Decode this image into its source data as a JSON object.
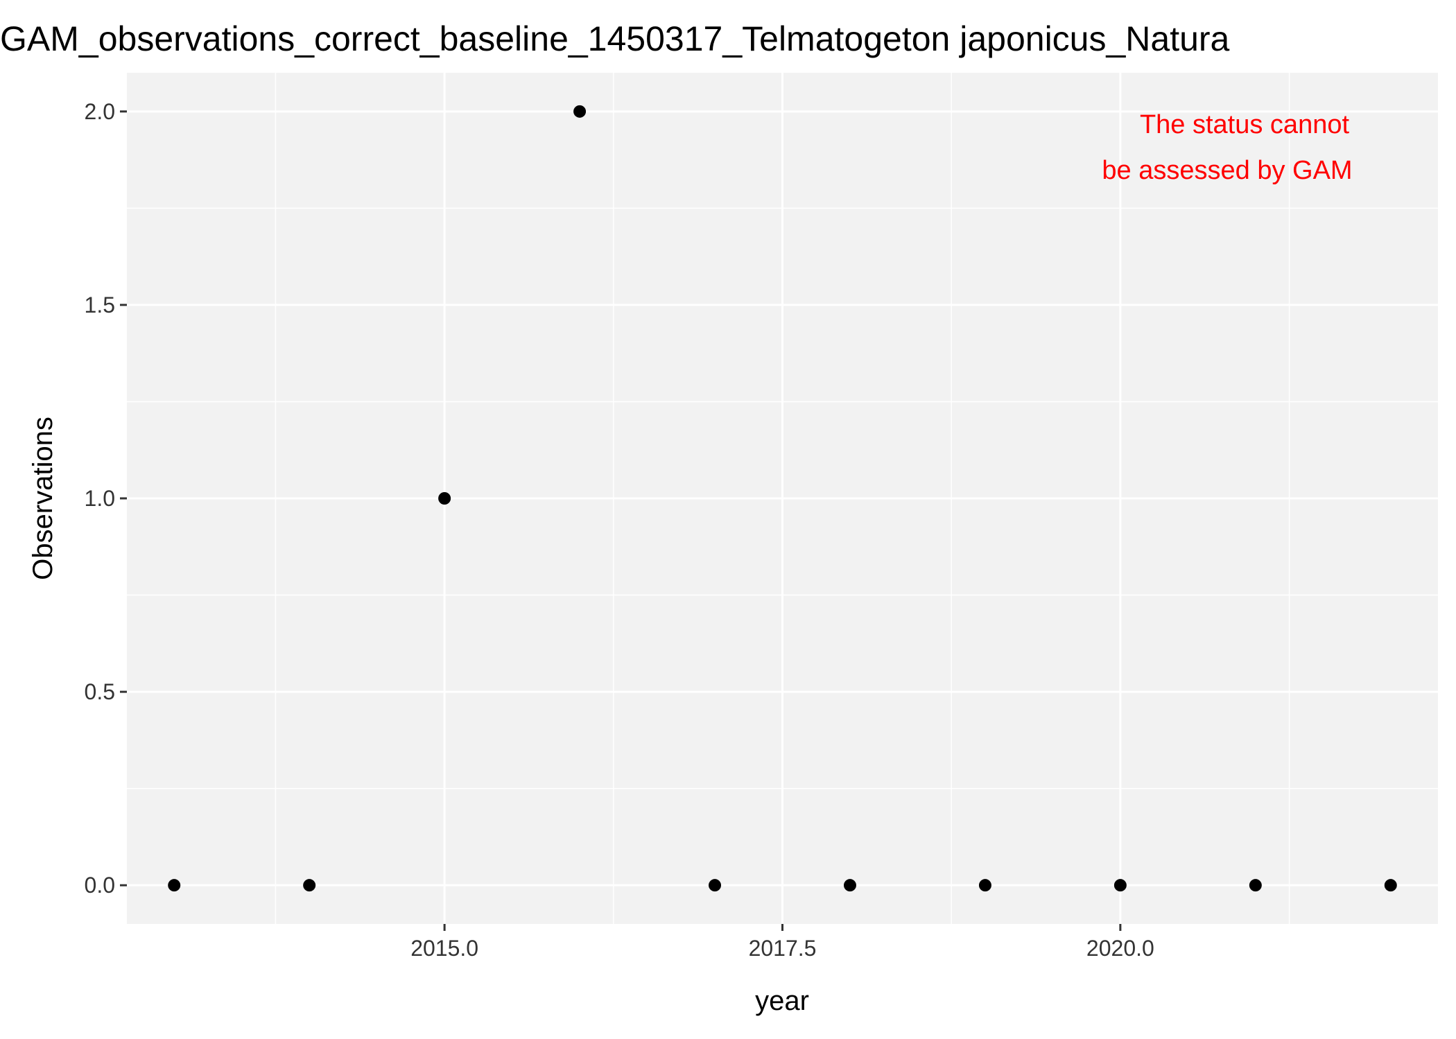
{
  "chart_data": {
    "type": "scatter",
    "title": "GAM_observations_correct_baseline_1450317_Telmatogeton japonicus_Natura",
    "xlabel": "year",
    "ylabel": "Observations",
    "xlim": [
      2012.65,
      2022.35
    ],
    "ylim": [
      -0.1,
      2.1
    ],
    "x_ticks": [
      2015.0,
      2017.5,
      2020.0
    ],
    "x_tick_labels": [
      "2015.0",
      "2017.5",
      "2020.0"
    ],
    "x_minor": [
      2013.75,
      2016.25,
      2018.75,
      2021.25
    ],
    "y_ticks": [
      0.0,
      0.5,
      1.0,
      1.5,
      2.0
    ],
    "y_tick_labels": [
      "0.0",
      "0.5",
      "1.0",
      "1.5",
      "2.0"
    ],
    "y_minor": [
      0.25,
      0.75,
      1.25,
      1.75
    ],
    "grid": true,
    "series": [
      {
        "name": "observations",
        "x": [
          2013,
          2014,
          2015,
          2016,
          2017,
          2018,
          2019,
          2020,
          2021,
          2022
        ],
        "y": [
          0,
          0,
          1,
          2,
          0,
          0,
          0,
          0,
          0,
          0
        ]
      }
    ],
    "annotation": {
      "lines": [
        "The status cannot",
        "be assessed by GAM"
      ],
      "color": "#ff0000"
    },
    "colors": {
      "panel": "#f2f2f2",
      "grid": "#ffffff",
      "point": "#000000",
      "tick": "#333333"
    }
  }
}
